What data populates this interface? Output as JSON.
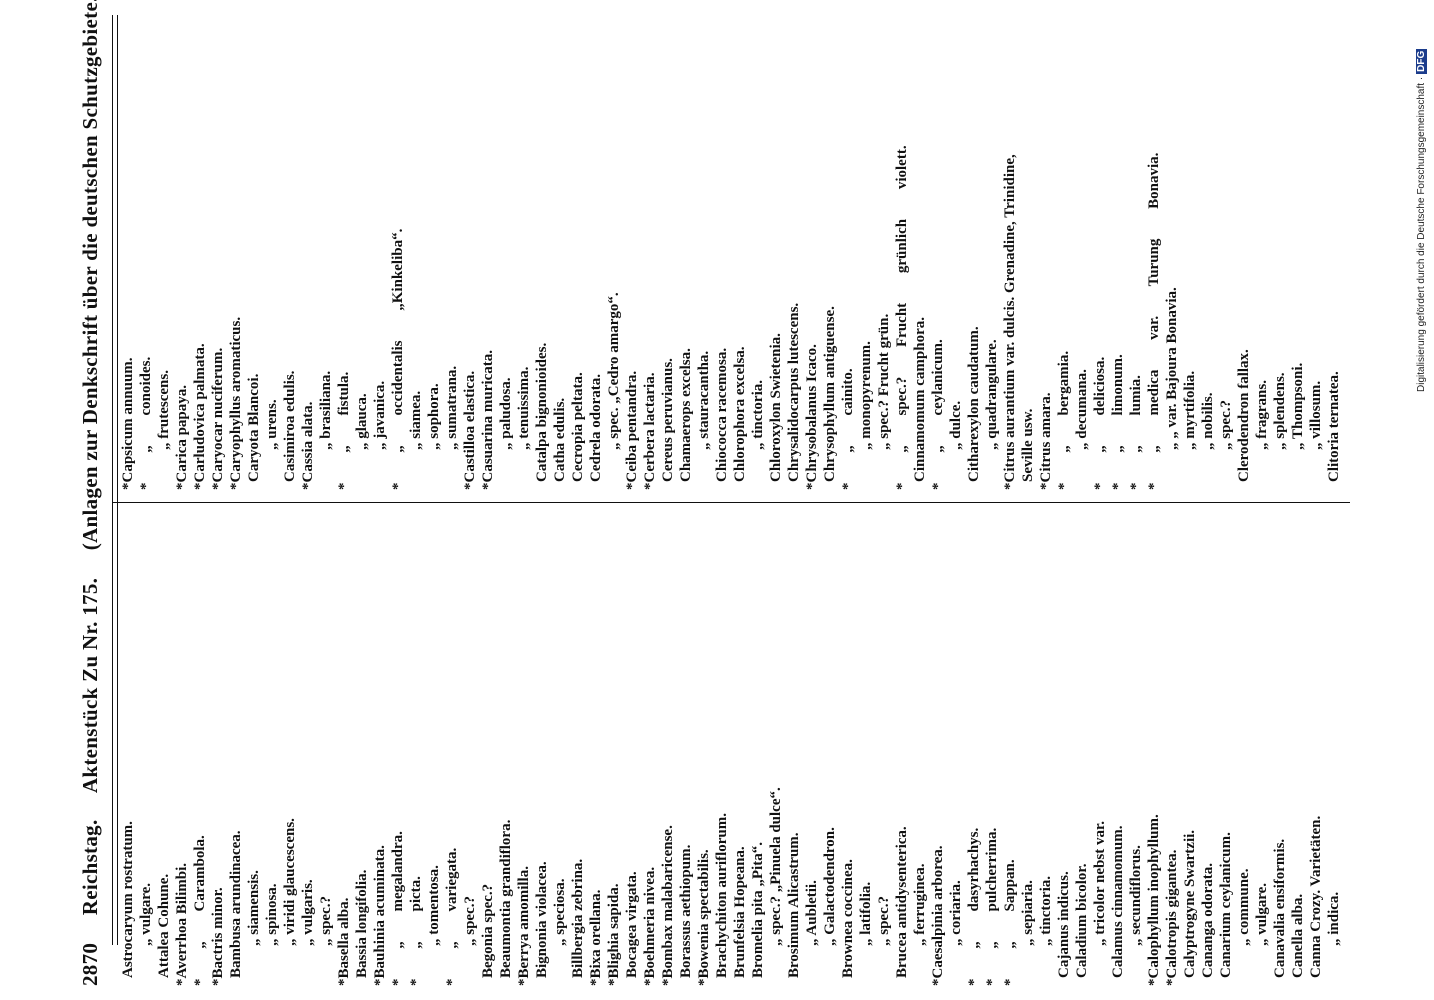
{
  "header": {
    "page_number": "2870",
    "publisher": "Reichstag.",
    "document": "Aktenstück Zu Nr. 175.",
    "title": "(Anlagen zur Denkschrift über die deutschen Schutzgebiete.)"
  },
  "columns": [
    [
      "Astrocaryum rostratum.",
      "„ vulgare.",
      "Attalea Cohune.",
      "*Averrhoa Bilimbi.",
      "* „ Carambola.",
      "*Bactris minor.",
      "Bambusa arundinacea.",
      "„ siamensis.",
      "„ spinosa.",
      "„ viridi glaucescens.",
      "„ vulgaris.",
      "„ spec.?",
      "*Basella alba.",
      "Bassia longifolia.",
      "*Bauhinia acuminata.",
      "* „ megalandra.",
      "* „ picta.",
      "„ tomentosa.",
      "* „ variegata.",
      "„ spec.?",
      "Begonia spec.?",
      "Beaumontia grandiflora.",
      "*Berrya amomilla.",
      "Bignonia violacea.",
      "„ speciosa.",
      "Billbergia zebrina.",
      "*Bixa orellana.",
      "*Blighia sapida.",
      "Bocagea virgata.",
      "*Boehmeria nivea.",
      "*Bombax malabaricense.",
      "Borassus aethiopum.",
      "*Bowenia spectabilis.",
      "Brachychiton auriflorum.",
      "Brunfelsia Hopeana.",
      "Bromelia pita „Pita“.",
      "„ spec.? „Pinuela dulce“.",
      "Brosimum Alicastrum.",
      "„ Aubletii.",
      "„ Galactodendron.",
      "Brownea coccinea.",
      "„ latifolia.",
      "„ spec.?",
      "Brucea antidysenterica.",
      "„ ferruginea.",
      "*Caesalpinia arborea.",
      "„ coriaria.",
      "* „ dasyrhachys.",
      "* „ pulcherrima.",
      "* „ Sappan.",
      "„ sepiaria.",
      "„ tinctoria.",
      "Cajanus indicus.",
      "Caladium bicolor.",
      "„ tricolor nebst var.",
      "Calamus cinnamomum.",
      "„ secundiflorus.",
      "*Calophyllum inophyllum.",
      "*Calotropis gigantea.",
      "Calyptrogyne Swartzii.",
      "Cananga odorata.",
      "Canarium ceylanicum.",
      "„ commune.",
      "„ vulgare.",
      "Canavalia ensiformis.",
      "Canella alba.",
      "Canna Crozy. Varietäten.",
      "„ indica."
    ],
    [
      "*Capsicum annuum.",
      "* „ conoides.",
      "„ frutescens.",
      "*Carica papaya.",
      "*Carludovica palmata.",
      "*Caryocar nuciferum.",
      "*Caryophyllus aromaticus.",
      "Caryota Blancoi.",
      "„ urens.",
      "Casimiroa edulis.",
      "*Cassia alata.",
      "„ brasiliana.",
      "* „ fistula.",
      "„ glauca.",
      "„ javanica.",
      "* „ occidentalis „Kinkeliba“.",
      "„ siamea.",
      "„ sophora.",
      "„ sumatrana.",
      "*Castilloa elastica.",
      "*Casuarina muricata.",
      "„ paludosa.",
      "„ tenuissima.",
      "Catalpa bignonioides.",
      "Catha edulis.",
      "Cecropia peltata.",
      "Cedrela odorata.",
      "„ spec. „Cedro amargo“.",
      "*Ceiba pentandra.",
      "*Cerbera lactaria.",
      "Cereus peruvianus.",
      "Chamaerops excelsa.",
      "„ stauracantha.",
      "Chiococca racemosa.",
      "Chlorophora excelsa.",
      "„ tinctoria.",
      "Chloroxylon Swietenia.",
      "Chrysalidocarpus lutescens.",
      "*Chrysobalanus Icaco.",
      "Chrysophyllum antiguense.",
      "* „ cainito.",
      "„ monopyrenum.",
      "„ spec.? Frucht grün.",
      "* „ spec.? Frucht grünlich violett.",
      "Cinnamomum camphora.",
      "* „ ceylanicum.",
      "„ dulce.",
      "Citharexylon caudatum.",
      "„ quadrangulare.",
      "*Citrus aurantium var. dulcis. Grenadine, Trinidine,",
      "Seville usw.",
      "*Citrus amara.",
      "* „ bergamia.",
      "„ decumana.",
      "* „ deliciosa.",
      "* „ limonum.",
      "* „ lumia.",
      "* „ medica var. Turung Bonavia.",
      "„ „ var. Bajoura Bonavia.",
      "„ myrtifolia.",
      "„ nobilis.",
      "„ spec.?",
      "Clerodendron fallax.",
      "„ fragrans.",
      "„ splendens.",
      "„ Thompsoni.",
      "„ villosum.",
      "Clitoria ternatea."
    ]
  ],
  "footer": {
    "note": "Digitalisierung gefördert durch die Deutsche Forschungsgemeinschaft ·",
    "logo": "DFG"
  }
}
